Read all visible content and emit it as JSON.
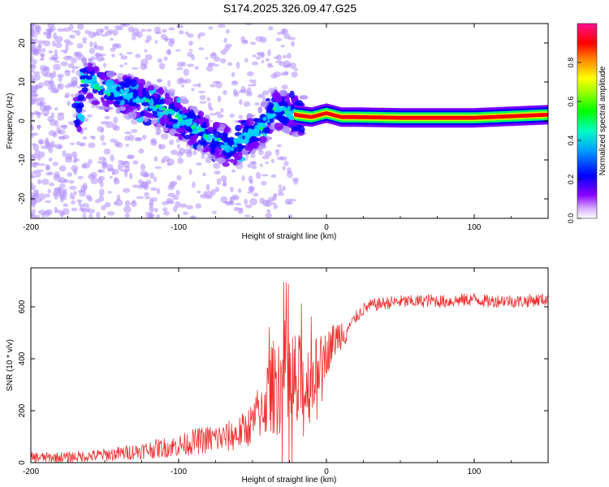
{
  "figure": {
    "title": "S174.2025.326.09.47.G25"
  },
  "chart_data": [
    {
      "type": "heatmap",
      "title": "",
      "xlabel": "Height of straight line (km)",
      "ylabel": "Frequency (Hz)",
      "xlim": [
        -200,
        150
      ],
      "ylim": [
        -25,
        25
      ],
      "xticks": [
        -200,
        -100,
        0,
        100
      ],
      "yticks": [
        -20,
        -10,
        0,
        10,
        20
      ],
      "x_tick_labels": [
        "-200",
        "-100",
        "0",
        "100"
      ],
      "y_tick_labels": [
        "-20",
        "-10",
        "0",
        "10",
        "20"
      ],
      "colorbar": {
        "label": "Normalized spectral amplitude",
        "range": [
          0,
          1
        ],
        "ticks": [
          0.0,
          0.2,
          0.4,
          0.6,
          0.8
        ],
        "tick_labels": [
          "0.0",
          "0.2",
          "0.4",
          "0.6",
          "0.8"
        ],
        "colors": [
          "#ffffff",
          "#b090ff",
          "#7a00ff",
          "#0000ff",
          "#00d0ff",
          "#00ff60",
          "#c0ff00",
          "#ffff00",
          "#ff8000",
          "#ff0000",
          "#ff40a0"
        ]
      },
      "ridge": {
        "description": "dominant frequency track vs height",
        "x": [
          -165,
          -150,
          -135,
          -125,
          -110,
          -95,
          -85,
          -75,
          -65,
          -55,
          -45,
          -35,
          -25,
          -20,
          -10,
          0,
          10,
          20,
          50,
          100,
          150
        ],
        "freq": [
          11,
          8,
          7,
          5,
          3,
          0,
          -3,
          -5,
          -7,
          -4,
          -2,
          3,
          2,
          1.5,
          1,
          2,
          1,
          1,
          0.8,
          0.8,
          1.6
        ]
      }
    },
    {
      "type": "line",
      "title": "",
      "xlabel": "Height of straight line (km)",
      "ylabel": "SNR (10 * v/v)",
      "xlim": [
        -200,
        150
      ],
      "ylim": [
        0,
        750
      ],
      "xticks": [
        -200,
        -100,
        0,
        100
      ],
      "yticks": [
        0,
        200,
        400,
        600
      ],
      "x_tick_labels": [
        "-200",
        "-100",
        "0",
        "100"
      ],
      "y_tick_labels": [
        "0",
        "200",
        "400",
        "600"
      ],
      "color": "#ee3030",
      "series": [
        {
          "name": "SNR",
          "x": [
            -200,
            -180,
            -160,
            -140,
            -120,
            -100,
            -90,
            -80,
            -70,
            -60,
            -50,
            -45,
            -40,
            -35,
            -30,
            -25,
            -20,
            -15,
            -10,
            -5,
            0,
            5,
            10,
            15,
            20,
            25,
            30,
            40,
            50,
            60,
            70,
            80,
            90,
            100,
            110,
            120,
            130,
            140,
            150
          ],
          "y": [
            20,
            20,
            25,
            35,
            50,
            65,
            80,
            90,
            95,
            110,
            150,
            200,
            250,
            300,
            330,
            300,
            280,
            280,
            320,
            380,
            420,
            470,
            500,
            520,
            560,
            590,
            605,
            615,
            620,
            620,
            625,
            620,
            625,
            630,
            620,
            625,
            620,
            625,
            630
          ]
        }
      ]
    }
  ]
}
